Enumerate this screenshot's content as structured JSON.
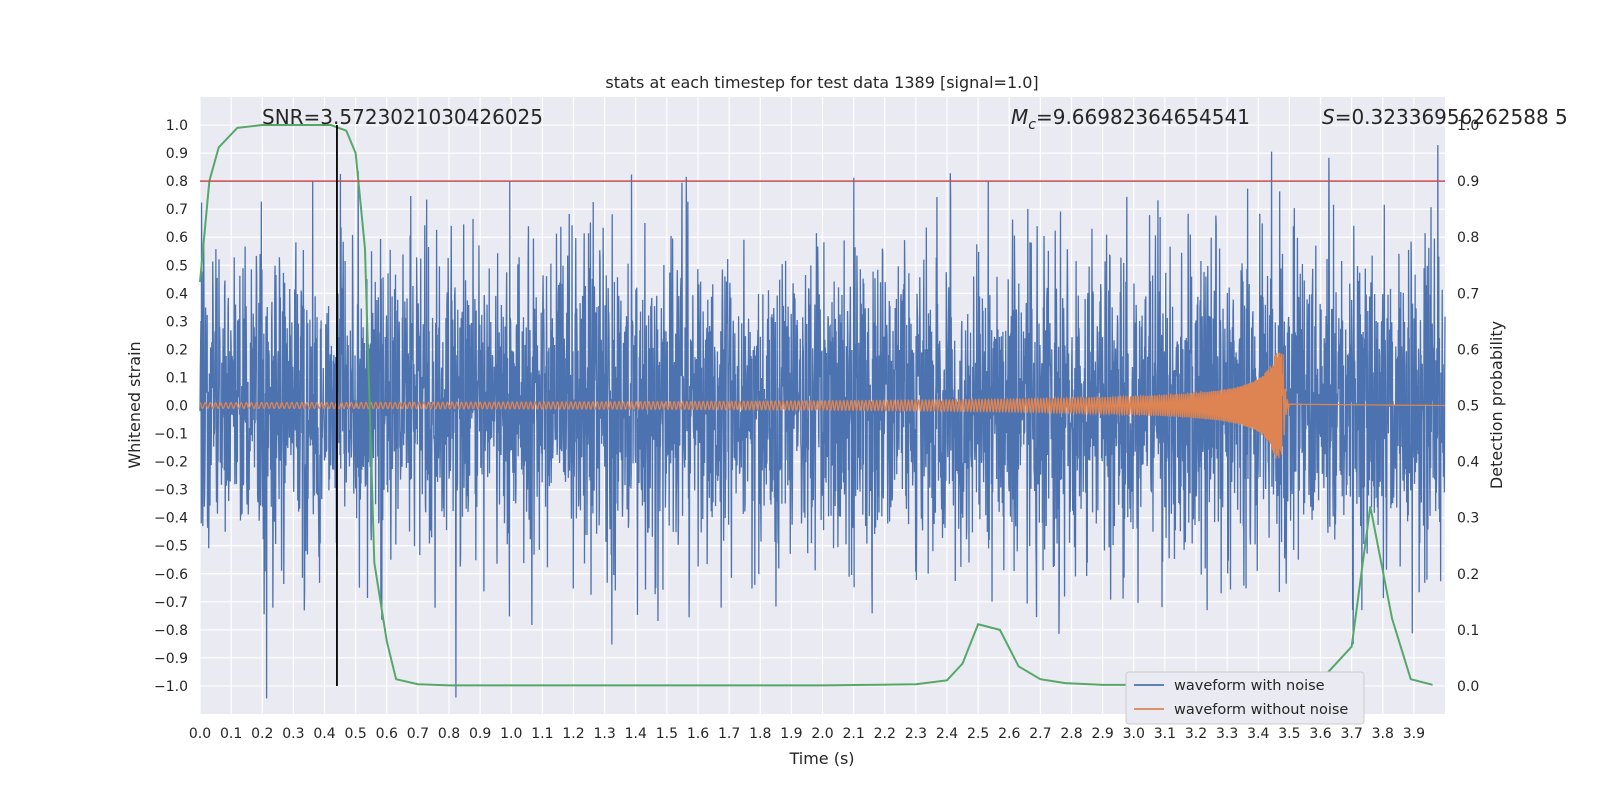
{
  "chart_data": {
    "type": "line",
    "title": "stats at each timestep for test data 1389 [signal=1.0]",
    "xlabel": "Time (s)",
    "ylabel": "Whitened strain",
    "y2label": "Detection probability",
    "xlim": [
      0.0,
      4.0
    ],
    "ylim": [
      -1.1,
      1.1
    ],
    "y2lim": [
      -0.05,
      1.05
    ],
    "x_ticks": [
      "0.0",
      "0.1",
      "0.2",
      "0.3",
      "0.4",
      "0.5",
      "0.6",
      "0.7",
      "0.8",
      "0.9",
      "1.0",
      "1.1",
      "1.2",
      "1.3",
      "1.4",
      "1.5",
      "1.6",
      "1.7",
      "1.8",
      "1.9",
      "2.0",
      "2.1",
      "2.2",
      "2.3",
      "2.4",
      "2.5",
      "2.6",
      "2.7",
      "2.8",
      "2.9",
      "3.0",
      "3.1",
      "3.2",
      "3.3",
      "3.4",
      "3.5",
      "3.6",
      "3.7",
      "3.8",
      "3.9"
    ],
    "y_ticks": [
      "1.0",
      "0.9",
      "0.8",
      "0.7",
      "0.6",
      "0.5",
      "0.4",
      "0.3",
      "0.2",
      "0.1",
      "0.0",
      "−0.1",
      "−0.2",
      "−0.3",
      "−0.4",
      "−0.5",
      "−0.6",
      "−0.7",
      "−0.8",
      "−0.9",
      "−1.0"
    ],
    "y2_ticks": [
      "1.0",
      "0.9",
      "0.8",
      "0.7",
      "0.6",
      "0.5",
      "0.4",
      "0.3",
      "0.2",
      "0.1",
      "0.0"
    ],
    "annotations": {
      "snr": "SNR=3.5723021030426025",
      "mc_symbol": "M",
      "mc_sub": "c",
      "mc_value": "=9.66982364654541",
      "s_symbol": "S",
      "s_value": "=0.32336956262588 5"
    },
    "threshold_y2": 0.9,
    "marker_x": 0.44,
    "legend": [
      "waveform with noise",
      "waveform without noise"
    ],
    "series": [
      {
        "name": "waveform with noise",
        "color": "#4c72b0",
        "generator": "gaussian-noise",
        "n_samples": 4000,
        "std": 0.28,
        "x_range": [
          0.0,
          4.0
        ]
      },
      {
        "name": "waveform without noise",
        "color": "#dd8452",
        "generator": "chirp",
        "x_range": [
          0.0,
          3.5
        ],
        "amplitude_start": 0.01,
        "amplitude_peak": 0.19,
        "peak_time": 3.48
      },
      {
        "name": "Detection probability",
        "axis": "y2",
        "color": "#55a868",
        "x": [
          0.0,
          0.03,
          0.06,
          0.12,
          0.2,
          0.3,
          0.36,
          0.42,
          0.47,
          0.5,
          0.53,
          0.56,
          0.6,
          0.63,
          0.7,
          0.8,
          1.0,
          1.5,
          2.0,
          2.3,
          2.4,
          2.45,
          2.5,
          2.57,
          2.63,
          2.7,
          2.78,
          2.9,
          3.4,
          3.6,
          3.7,
          3.76,
          3.83,
          3.89,
          3.96
        ],
        "values": [
          0.72,
          0.9,
          0.96,
          0.995,
          1.0,
          1.0,
          1.0,
          1.0,
          0.99,
          0.95,
          0.78,
          0.22,
          0.08,
          0.012,
          0.003,
          0.001,
          0.001,
          0.001,
          0.001,
          0.003,
          0.01,
          0.04,
          0.11,
          0.1,
          0.035,
          0.012,
          0.005,
          0.002,
          0.002,
          0.01,
          0.07,
          0.32,
          0.12,
          0.012,
          0.002
        ]
      }
    ],
    "colors": {
      "background": "#eaeaf2",
      "grid": "#ffffff",
      "threshold": "#c44e52",
      "marker": "#000000"
    }
  }
}
